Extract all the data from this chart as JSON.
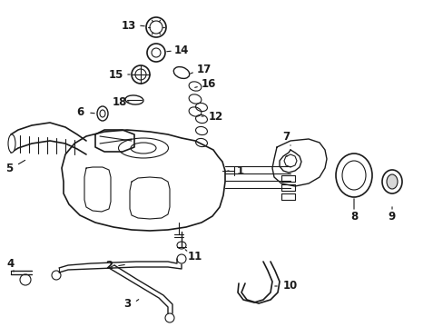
{
  "bg_color": "#ffffff",
  "line_color": "#1a1a1a",
  "fig_width": 4.89,
  "fig_height": 3.6,
  "dpi": 100,
  "label_fontsize": 8.5,
  "label_fontweight": "bold"
}
